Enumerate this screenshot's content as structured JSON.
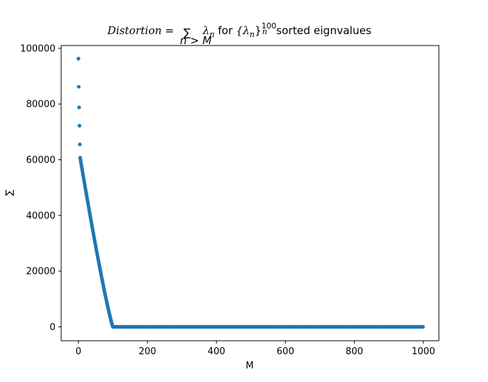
{
  "chart_data": {
    "type": "scatter",
    "title": {
      "lhs": "Distortion",
      "eq": " = ",
      "sum_symbol": "∑",
      "sum_subscript": "n > M",
      "lambda_n": "λ",
      "n_sub": "n",
      "for_text": " for ",
      "set_open": "{λ",
      "set_close": "}",
      "set_sup": "100",
      "set_sub": "n",
      "tail": " sorted eignvalues"
    },
    "xlabel": "M",
    "ylabel": "∑",
    "xlim": [
      -50,
      1045
    ],
    "ylim": [
      -5000,
      101000
    ],
    "xticks": [
      0,
      200,
      400,
      600,
      800,
      1000
    ],
    "yticks": [
      0,
      20000,
      40000,
      60000,
      80000,
      100000
    ],
    "marker_color": "#1f77b4",
    "series": [
      {
        "first_points": [
          {
            "x": 0,
            "y": 96300
          },
          {
            "x": 1,
            "y": 86200
          },
          {
            "x": 2,
            "y": 78800
          },
          {
            "x": 3,
            "y": 72200
          },
          {
            "x": 4,
            "y": 65500
          },
          {
            "x": 5,
            "y": 60700
          }
        ],
        "decay": {
          "x_start": 5,
          "x_end": 100,
          "y_start": 60700,
          "y_end": 0
        },
        "tail": {
          "x_start": 100,
          "x_end": 999,
          "y": 0
        }
      }
    ]
  }
}
